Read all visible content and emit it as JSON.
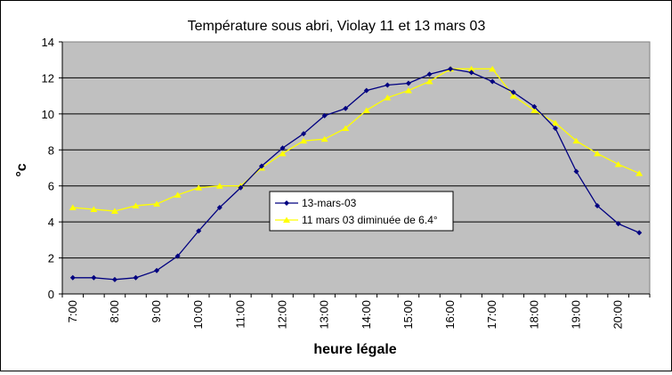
{
  "chart_data": {
    "type": "line",
    "title": "Température sous abri, Violay 11 et 13 mars 03",
    "xlabel": "heure légale",
    "ylabel": "°c",
    "ylim": [
      0,
      14
    ],
    "yticks": [
      "0",
      "2",
      "4",
      "6",
      "8",
      "10",
      "12",
      "14"
    ],
    "x_tick_labels": [
      "7:00",
      "8:00",
      "9:00",
      "10:00",
      "11:00",
      "12:00",
      "13:00",
      "14:00",
      "15:00",
      "16:00",
      "17:00",
      "18:00",
      "19:00",
      "20:00"
    ],
    "x": [
      "7:00",
      "7:30",
      "8:00",
      "8:30",
      "9:00",
      "9:30",
      "10:00",
      "10:30",
      "11:00",
      "11:30",
      "12:00",
      "12:30",
      "13:00",
      "13:30",
      "14:00",
      "14:30",
      "15:00",
      "15:30",
      "16:00",
      "16:30",
      "17:00",
      "17:30",
      "18:00",
      "18:30",
      "19:00",
      "19:30",
      "20:00",
      "20:30"
    ],
    "grid": true,
    "legend_position": "center-left",
    "background_color": "#c0c0c0",
    "series": [
      {
        "name": "13-mars-03",
        "color": "#000080",
        "marker": "diamond",
        "values": [
          0.9,
          0.9,
          0.8,
          0.9,
          1.3,
          2.1,
          3.5,
          4.8,
          5.9,
          7.1,
          8.1,
          8.9,
          9.9,
          10.3,
          11.3,
          11.6,
          11.7,
          12.2,
          12.5,
          12.3,
          11.8,
          11.2,
          10.4,
          9.2,
          6.8,
          4.9,
          3.9,
          3.4
        ]
      },
      {
        "name": "11 mars 03 diminuée de 6.4°",
        "color": "#ffff00",
        "marker": "triangle",
        "values": [
          4.8,
          4.7,
          4.6,
          4.9,
          5.0,
          5.5,
          5.9,
          6.0,
          6.0,
          7.0,
          7.8,
          8.5,
          8.6,
          9.2,
          10.2,
          10.9,
          11.3,
          11.8,
          12.5,
          12.5,
          12.5,
          11.0,
          10.2,
          9.5,
          8.5,
          7.8,
          7.2,
          6.7
        ]
      }
    ]
  }
}
